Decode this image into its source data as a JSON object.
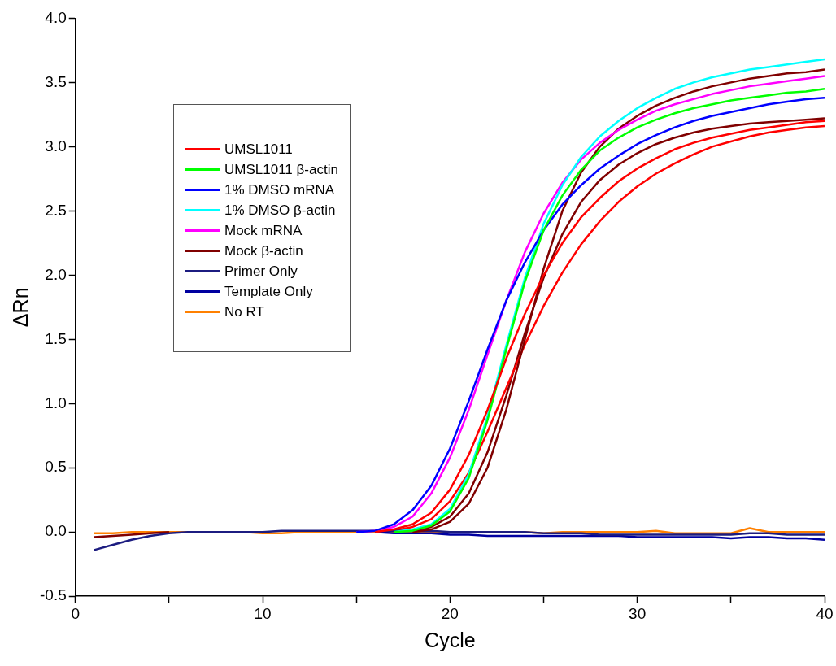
{
  "chart_data": {
    "type": "line",
    "xlabel": "Cycle",
    "ylabel": "ΔRn",
    "legend": "top left",
    "grid": false,
    "marker": "none",
    "line_style": "solid",
    "x": [
      1,
      2,
      3,
      4,
      5,
      6,
      7,
      8,
      9,
      10,
      11,
      12,
      13,
      14,
      15,
      16,
      17,
      18,
      19,
      20,
      21,
      22,
      23,
      24,
      25,
      26,
      27,
      28,
      29,
      30,
      31,
      32,
      33,
      34,
      35,
      36,
      37,
      38,
      39,
      40
    ],
    "xlim": [
      0,
      40
    ],
    "xticks": [
      0,
      {
        "value": 5,
        "label": null
      },
      10,
      {
        "value": 15,
        "label": null
      },
      20,
      {
        "value": 25,
        "label": null
      },
      30,
      {
        "value": 35,
        "label": null
      },
      40
    ],
    "ylim": [
      -0.5,
      4.0
    ],
    "yticks": [
      -0.5,
      {
        "value": 0,
        "label": "0.0"
      },
      0.5,
      {
        "value": 1,
        "label": "1.0"
      },
      1.5,
      {
        "value": 2,
        "label": "2.0"
      },
      2.5,
      {
        "value": 3,
        "label": "3.0"
      },
      3.5,
      {
        "value": 4,
        "label": "4.0"
      }
    ],
    "series": [
      {
        "name": "UMSL1011",
        "color": "#ff0000",
        "values": [
          null,
          null,
          null,
          null,
          null,
          null,
          null,
          null,
          null,
          null,
          null,
          null,
          null,
          null,
          null,
          0,
          0.02,
          0.06,
          0.15,
          0.33,
          0.6,
          0.95,
          1.35,
          1.7,
          2.0,
          2.25,
          2.45,
          2.6,
          2.73,
          2.83,
          2.91,
          2.98,
          3.03,
          3.07,
          3.1,
          3.13,
          3.15,
          3.17,
          3.19,
          3.2
        ]
      },
      {
        "name": "UMSL1011 β-actin",
        "color": "#00ff00",
        "values": [
          null,
          null,
          null,
          null,
          null,
          null,
          null,
          null,
          null,
          null,
          null,
          null,
          null,
          null,
          null,
          null,
          0,
          0.01,
          0.05,
          0.16,
          0.42,
          0.87,
          1.42,
          1.95,
          2.35,
          2.62,
          2.82,
          2.97,
          3.07,
          3.15,
          3.21,
          3.26,
          3.3,
          3.33,
          3.36,
          3.38,
          3.4,
          3.42,
          3.43,
          3.45
        ]
      },
      {
        "name": "1% DMSO mRNA",
        "color": "#0000ff",
        "values": [
          null,
          null,
          null,
          null,
          null,
          null,
          null,
          null,
          null,
          null,
          null,
          null,
          null,
          null,
          0,
          0.01,
          0.06,
          0.17,
          0.36,
          0.65,
          1.02,
          1.42,
          1.8,
          2.1,
          2.35,
          2.55,
          2.7,
          2.83,
          2.93,
          3.02,
          3.09,
          3.15,
          3.2,
          3.24,
          3.27,
          3.3,
          3.33,
          3.35,
          3.37,
          3.38
        ]
      },
      {
        "name": "1% DMSO β-actin",
        "color": "#00ffff",
        "values": [
          null,
          null,
          null,
          null,
          null,
          null,
          null,
          null,
          null,
          null,
          null,
          null,
          null,
          null,
          null,
          null,
          0,
          0.02,
          0.06,
          0.18,
          0.45,
          0.9,
          1.45,
          1.98,
          2.4,
          2.7,
          2.92,
          3.08,
          3.2,
          3.3,
          3.38,
          3.45,
          3.5,
          3.54,
          3.57,
          3.6,
          3.62,
          3.64,
          3.66,
          3.68
        ]
      },
      {
        "name": "Mock mRNA",
        "color": "#ff00ff",
        "values": [
          null,
          null,
          null,
          null,
          null,
          null,
          null,
          null,
          null,
          null,
          null,
          null,
          null,
          null,
          0,
          0.01,
          0.04,
          0.12,
          0.3,
          0.58,
          0.95,
          1.38,
          1.8,
          2.18,
          2.48,
          2.72,
          2.9,
          3.03,
          3.13,
          3.21,
          3.28,
          3.33,
          3.37,
          3.41,
          3.44,
          3.47,
          3.49,
          3.51,
          3.53,
          3.55
        ]
      },
      {
        "name": "Mock β-actin",
        "color": "#800000",
        "values": [
          -0.04,
          -0.03,
          -0.02,
          -0.01,
          0,
          null,
          null,
          null,
          null,
          null,
          null,
          null,
          null,
          null,
          null,
          null,
          null,
          0,
          0.02,
          0.08,
          0.22,
          0.5,
          0.95,
          1.5,
          2.05,
          2.5,
          2.8,
          3.0,
          3.14,
          3.24,
          3.32,
          3.38,
          3.43,
          3.47,
          3.5,
          3.53,
          3.55,
          3.57,
          3.58,
          3.6
        ]
      },
      {
        "name": "Primer Only",
        "color": "#1c1c80",
        "values": [
          -0.14,
          -0.1,
          -0.06,
          -0.03,
          -0.01,
          0,
          0,
          0,
          0,
          0,
          0.01,
          0.01,
          0.01,
          0.01,
          0.01,
          0.01,
          0.01,
          0.01,
          0.01,
          0,
          0,
          0,
          0,
          0,
          -0.01,
          -0.01,
          -0.01,
          -0.02,
          -0.02,
          -0.02,
          -0.02,
          -0.02,
          -0.02,
          -0.02,
          -0.02,
          -0.01,
          -0.01,
          -0.02,
          -0.02,
          -0.02
        ]
      },
      {
        "name": "Template Only",
        "color": "#0000a0",
        "values": [
          null,
          null,
          null,
          null,
          null,
          null,
          null,
          null,
          null,
          null,
          null,
          null,
          null,
          null,
          null,
          0,
          -0.01,
          -0.01,
          -0.01,
          -0.02,
          -0.02,
          -0.03,
          -0.03,
          -0.03,
          -0.03,
          -0.03,
          -0.03,
          -0.03,
          -0.03,
          -0.04,
          -0.04,
          -0.04,
          -0.04,
          -0.04,
          -0.05,
          -0.04,
          -0.04,
          -0.05,
          -0.05,
          -0.06
        ]
      },
      {
        "name": "No RT",
        "color": "#ff8000",
        "values": [
          -0.01,
          -0.01,
          0,
          0,
          0,
          0,
          0,
          0,
          0,
          -0.01,
          -0.01,
          0,
          0,
          0,
          0,
          0,
          0,
          0,
          0,
          0,
          0,
          0,
          0,
          0,
          -0.01,
          0,
          0,
          0,
          0,
          0,
          0.01,
          -0.01,
          -0.01,
          -0.01,
          -0.01,
          0.03,
          0,
          0,
          0,
          0
        ]
      },
      {
        "color": "#ff0000",
        "values": [
          null,
          null,
          null,
          null,
          null,
          null,
          null,
          null,
          null,
          null,
          null,
          null,
          null,
          null,
          null,
          0,
          0.01,
          0.04,
          0.1,
          0.24,
          0.46,
          0.78,
          1.12,
          1.46,
          1.76,
          2.02,
          2.24,
          2.42,
          2.57,
          2.69,
          2.79,
          2.87,
          2.94,
          3.0,
          3.04,
          3.08,
          3.11,
          3.13,
          3.15,
          3.16
        ]
      },
      {
        "color": "#800000",
        "values": [
          null,
          null,
          null,
          null,
          null,
          null,
          null,
          null,
          null,
          null,
          null,
          null,
          null,
          null,
          null,
          null,
          0,
          0.01,
          0.04,
          0.12,
          0.3,
          0.62,
          1.06,
          1.55,
          1.98,
          2.32,
          2.57,
          2.74,
          2.86,
          2.95,
          3.02,
          3.07,
          3.11,
          3.14,
          3.16,
          3.18,
          3.19,
          3.2,
          3.21,
          3.22
        ]
      }
    ]
  }
}
